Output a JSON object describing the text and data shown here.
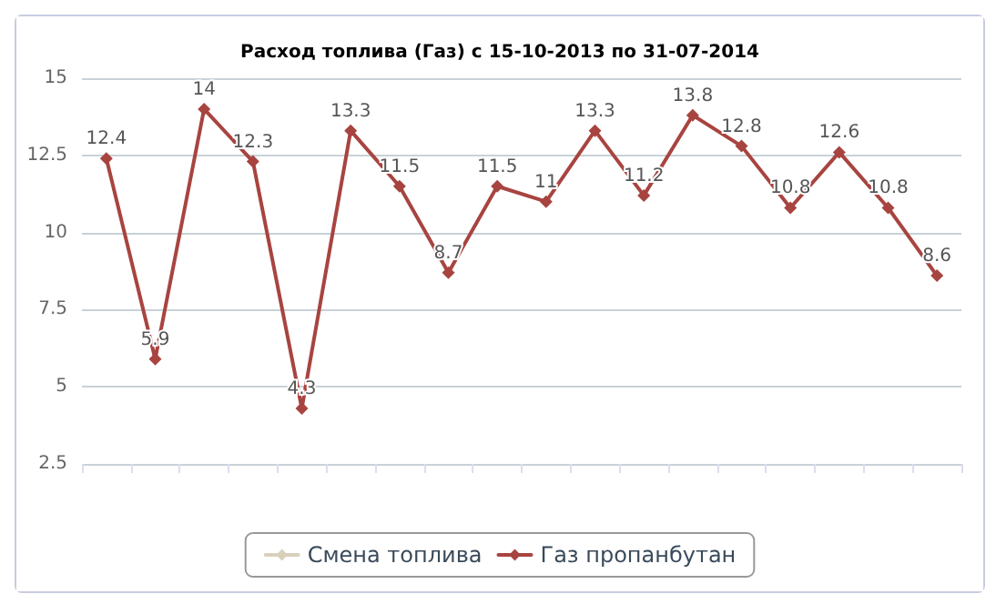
{
  "chart_data": {
    "type": "line",
    "title": "Расход топлива (Газ) с 15-10-2013 по 31-07-2014",
    "categories": [
      null,
      null,
      null,
      null,
      null,
      null,
      null,
      null,
      null,
      null,
      null,
      null,
      null,
      null,
      null,
      null,
      null,
      null
    ],
    "series": [
      {
        "name": "Смена топлива",
        "color": "#d9d0bc",
        "values": [
          null,
          null,
          null,
          null,
          null,
          null,
          null,
          null,
          null,
          null,
          null,
          null,
          null,
          null,
          null,
          null,
          null,
          null
        ]
      },
      {
        "name": "Газ пропанбутан",
        "color": "#a84440",
        "values": [
          12.4,
          5.9,
          14,
          12.3,
          4.3,
          13.3,
          11.5,
          8.7,
          11.5,
          11,
          13.3,
          11.2,
          13.8,
          12.8,
          10.8,
          12.6,
          10.8,
          8.6
        ]
      }
    ],
    "ylim": [
      2.5,
      15
    ],
    "yticks": [
      2.5,
      5,
      7.5,
      10,
      12.5,
      15
    ],
    "grid": "y",
    "legend": "bottom",
    "marker": "diamond",
    "line_style": "solid",
    "data_labels": true
  }
}
